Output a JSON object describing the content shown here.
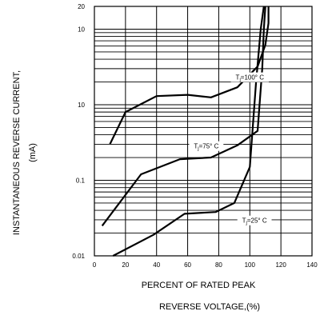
{
  "chart_data": {
    "type": "line",
    "xlabel": "PERCENT OF RATED PEAK",
    "xlabel_line2": "REVERSE VOLTAGE,(%)",
    "ylabel": "INSTANTANEOUS REVERSE CURRENT,",
    "ylabel_unit": "(mA)",
    "xlim": [
      0,
      140
    ],
    "ylim": [
      0.01,
      20
    ],
    "y_scale": "log",
    "grid": true,
    "x_ticks": [
      "0",
      "20",
      "40",
      "60",
      "80",
      "100",
      "120",
      "140"
    ],
    "y_ticks": [
      "0.01",
      "0.1",
      "10",
      "10",
      "20"
    ],
    "series": [
      {
        "name": "Tj=100° C",
        "color": "#000000",
        "x": [
          10,
          20,
          40,
          60,
          75,
          92,
          105,
          110,
          112,
          112
        ],
        "y": [
          0.3,
          0.8,
          1.3,
          1.35,
          1.25,
          1.7,
          3.2,
          6.2,
          12,
          20
        ]
      },
      {
        "name": "Tj=75° C",
        "color": "#000000",
        "x": [
          5,
          30,
          55,
          75,
          92,
          105,
          108,
          109,
          110
        ],
        "y": [
          0.025,
          0.12,
          0.19,
          0.2,
          0.29,
          0.45,
          3.0,
          10,
          20
        ]
      },
      {
        "name": "Tj=25° C",
        "color": "#000000",
        "x": [
          12,
          38,
          58,
          78,
          90,
          100,
          104,
          107,
          109
        ],
        "y": [
          0.01,
          0.019,
          0.036,
          0.038,
          0.05,
          0.15,
          2.0,
          10,
          20
        ]
      }
    ]
  },
  "curve_labels": [
    {
      "main": "T",
      "sub": "j",
      "rest": "=100° C"
    },
    {
      "main": "T",
      "sub": "j",
      "rest": "=75° C"
    },
    {
      "main": "T",
      "sub": "j",
      "rest": "=25° C"
    }
  ]
}
